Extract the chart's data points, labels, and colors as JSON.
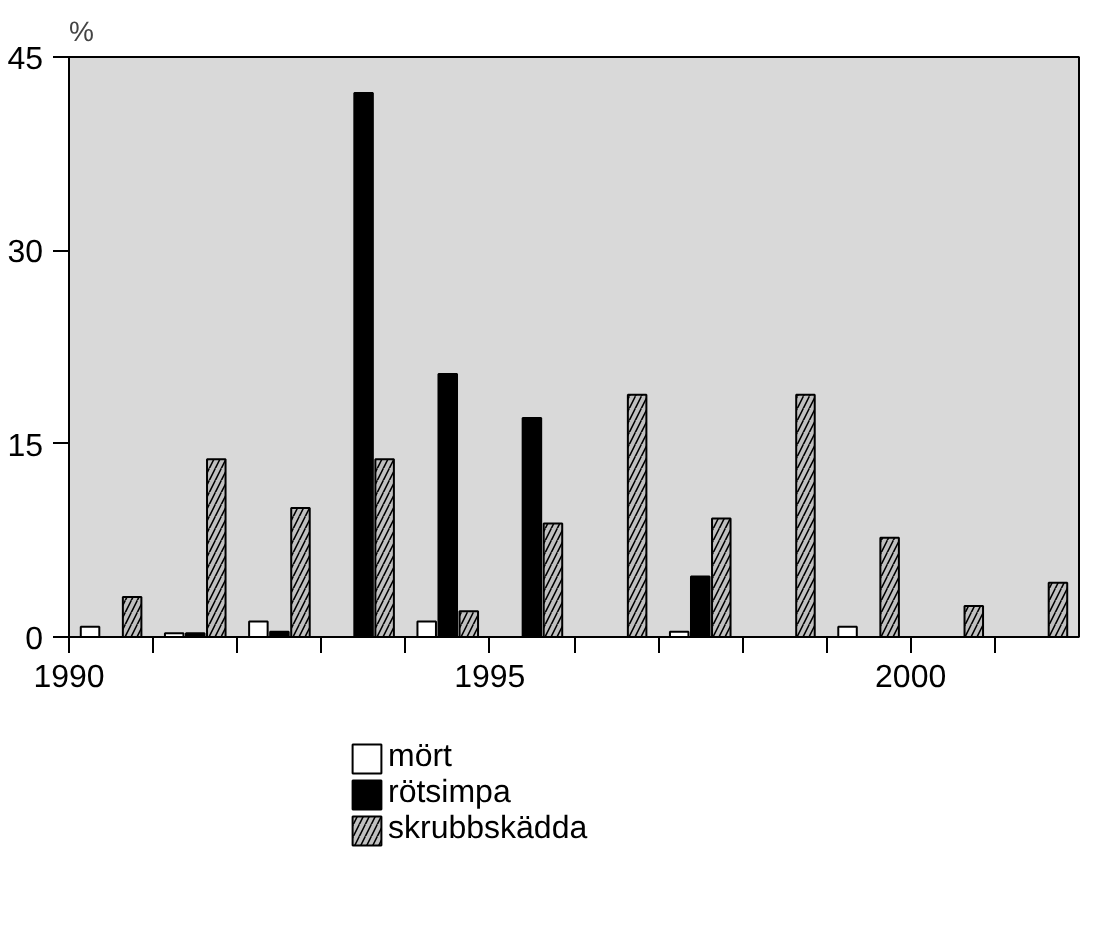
{
  "chart_data": {
    "type": "bar",
    "ylabel": "%",
    "x": [
      1990.5,
      1991.5,
      1992.5,
      1993.5,
      1994.5,
      1995.5,
      1996.5,
      1997.5,
      1998.5,
      1999.5,
      2000.5,
      2001.5
    ],
    "series": [
      {
        "name": "mört",
        "color": "#ffffff",
        "values": [
          0.8,
          0.3,
          1.2,
          null,
          1.2,
          null,
          null,
          0.4,
          null,
          0.8,
          null,
          null
        ]
      },
      {
        "name": "rötsimpa",
        "color": "#000000",
        "values": [
          null,
          0.3,
          0.4,
          42.2,
          20.4,
          17.0,
          null,
          4.7,
          null,
          null,
          null,
          null
        ]
      },
      {
        "name": "skrubbskädda",
        "color": "#c0c0c0",
        "values": [
          3.1,
          13.8,
          10.0,
          13.8,
          2.0,
          8.8,
          18.8,
          9.2,
          18.8,
          7.7,
          2.4,
          4.2
        ]
      }
    ],
    "xlim": [
      1990,
      2002
    ],
    "xticks": [
      1990,
      {
        "value": 1991,
        "label": null
      },
      {
        "value": 1992,
        "label": null
      },
      {
        "value": 1993,
        "label": null
      },
      {
        "value": 1994,
        "label": null
      },
      1995,
      {
        "value": 1996,
        "label": null
      },
      {
        "value": 1997,
        "label": null
      },
      {
        "value": 1998,
        "label": null
      },
      {
        "value": 1999,
        "label": null
      },
      2000,
      {
        "value": 2001,
        "label": null
      }
    ],
    "ylim": [
      0,
      45
    ],
    "yticks": [
      0,
      15,
      30,
      45
    ],
    "grid": false,
    "legend": "bottom"
  }
}
